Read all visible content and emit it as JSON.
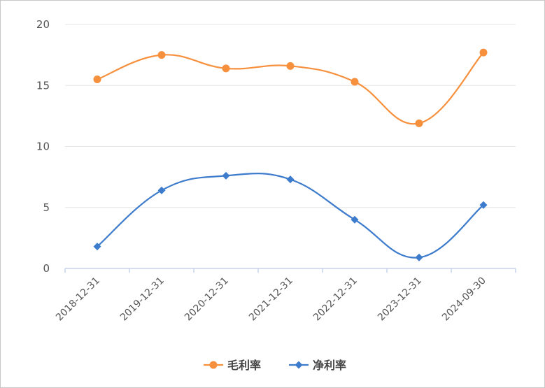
{
  "chart_data": {
    "type": "line",
    "title": "",
    "xlabel": "",
    "ylabel": "",
    "categories": [
      "2018-12-31",
      "2019-12-31",
      "2020-12-31",
      "2021-12-31",
      "2022-12-31",
      "2023-12-31",
      "2024-09-30"
    ],
    "ylim": [
      0,
      20
    ],
    "yticks": [
      "0",
      "5",
      "10",
      "15",
      "20"
    ],
    "grid": true,
    "legend_position": "bottom-center",
    "series": [
      {
        "name": "毛利率",
        "color": "#f7903d",
        "marker": "circle",
        "values": [
          15.5,
          17.5,
          16.4,
          16.6,
          15.3,
          11.9,
          17.7
        ]
      },
      {
        "name": "净利率",
        "color": "#3d7bcc",
        "marker": "diamond",
        "values": [
          1.8,
          6.4,
          7.6,
          7.3,
          4.0,
          0.9,
          5.2
        ]
      }
    ]
  }
}
